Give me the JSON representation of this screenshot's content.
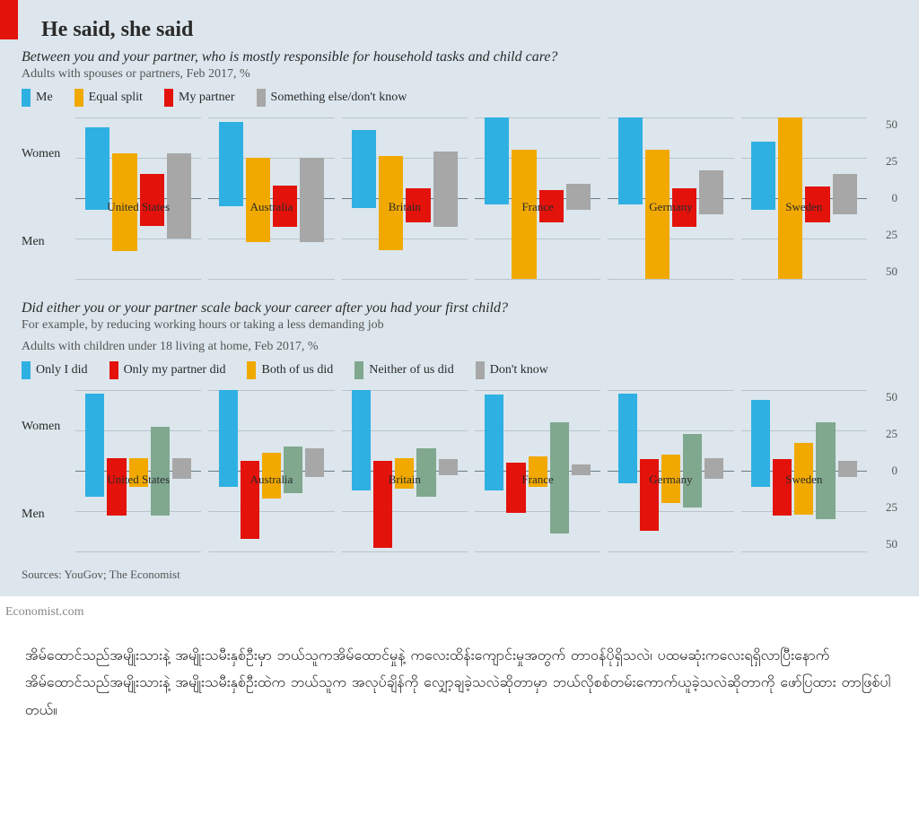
{
  "title": "He said, she said",
  "section1": {
    "subtitle": "Between you and your partner, who is mostly responsible for household tasks and child care?",
    "desc": "Adults with spouses or partners, Feb 2017, %",
    "legend": [
      {
        "label": "Me",
        "color": "#2fb0e3"
      },
      {
        "label": "Equal split",
        "color": "#f1a900"
      },
      {
        "label": "My partner",
        "color": "#e3120b"
      },
      {
        "label": "Something else/don't know",
        "color": "#a7a7a7"
      }
    ],
    "ylim": 50,
    "ticks": [
      50,
      25,
      0,
      25,
      50
    ],
    "row_labels": [
      "Women",
      "Men"
    ],
    "grid_color": "#b8c4cc",
    "zero_color": "#6a7a85",
    "countries": [
      {
        "name": "United States",
        "women": [
          44,
          28,
          15,
          28
        ],
        "men": [
          7,
          33,
          17,
          25
        ]
      },
      {
        "name": "Australia",
        "women": [
          47,
          25,
          8,
          25
        ],
        "men": [
          5,
          27,
          18,
          27
        ]
      },
      {
        "name": "Britain",
        "women": [
          42,
          26,
          6,
          29
        ],
        "men": [
          6,
          32,
          15,
          18
        ]
      },
      {
        "name": "France",
        "women": [
          54,
          30,
          5,
          9
        ],
        "men": [
          4,
          50,
          15,
          7
        ]
      },
      {
        "name": "Germany",
        "women": [
          50,
          30,
          6,
          17
        ],
        "men": [
          4,
          50,
          18,
          10
        ]
      },
      {
        "name": "Sweden",
        "women": [
          35,
          50,
          7,
          15
        ],
        "men": [
          7,
          53,
          15,
          10
        ]
      }
    ]
  },
  "section2": {
    "subtitle": "Did either you or your partner scale back your career after you had your first child?",
    "desc1": "For example, by reducing working hours or taking a less demanding job",
    "desc2": "Adults with children under 18 living at home, Feb 2017, %",
    "legend": [
      {
        "label": "Only I did",
        "color": "#2fb0e3"
      },
      {
        "label": "Only my partner did",
        "color": "#e3120b"
      },
      {
        "label": "Both of us did",
        "color": "#f1a900"
      },
      {
        "label": "Neither of us did",
        "color": "#7fa88f"
      },
      {
        "label": "Don't know",
        "color": "#a7a7a7"
      }
    ],
    "ylim": 50,
    "ticks": [
      50,
      25,
      0,
      25,
      50
    ],
    "row_labels": [
      "Women",
      "Men"
    ],
    "countries": [
      {
        "name": "United States",
        "women": [
          48,
          8,
          8,
          27,
          8
        ],
        "men": [
          16,
          28,
          10,
          28,
          5
        ]
      },
      {
        "name": "Australia",
        "women": [
          50,
          6,
          11,
          15,
          14
        ],
        "men": [
          10,
          42,
          17,
          14,
          4
        ]
      },
      {
        "name": "Britain",
        "women": [
          63,
          6,
          8,
          14,
          7
        ],
        "men": [
          12,
          48,
          11,
          16,
          3
        ]
      },
      {
        "name": "France",
        "women": [
          47,
          5,
          9,
          30,
          4
        ],
        "men": [
          12,
          26,
          10,
          39,
          3
        ]
      },
      {
        "name": "Germany",
        "women": [
          48,
          7,
          10,
          23,
          8
        ],
        "men": [
          8,
          37,
          20,
          23,
          5
        ]
      },
      {
        "name": "Sweden",
        "women": [
          44,
          7,
          17,
          30,
          6
        ],
        "men": [
          10,
          28,
          27,
          30,
          4
        ]
      }
    ]
  },
  "sources": "Sources: YouGov; The Economist",
  "site_credit": "Economist.com",
  "caption": "အိမ်ထောင်သည်အမျိုးသားနဲ့ အမျိုးသမီးနှစ်ဦးမှာ ဘယ်သူကအိမ်ထောင်မှုနဲ့ ကလေးထိန်းကျောင်းမှုအတွက် တာဝန်ပိုရှိသလဲ၊ ပထမဆုံးကလေးရရှိလာပြီးနောက် အိမ်ထောင်သည်အမျိုးသားနဲ့ အမျိုးသမီးနှစ်ဦးထဲက ဘယ်သူက အလုပ်ချိန်ကို လျှော့ချခဲ့သလဲဆိုတာမှာ ဘယ်လိုစစ်တမ်းကောက်ယူခဲ့သလဲဆိုတာကို ဖော်ပြထား တာဖြစ်ပါတယ်။"
}
